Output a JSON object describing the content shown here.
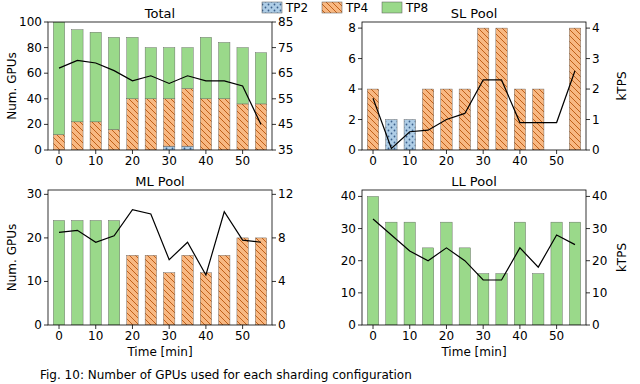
{
  "chart_data": [
    {
      "type": "bar",
      "title": "Total",
      "stacked": true,
      "legend": "top",
      "x": [
        0,
        5,
        10,
        15,
        20,
        25,
        30,
        35,
        40,
        45,
        50,
        55
      ],
      "xlim": [
        -3,
        58
      ],
      "xticks": [
        0,
        10,
        20,
        30,
        40,
        50
      ],
      "ylabel": "Num. GPUs",
      "ylim": [
        0,
        100
      ],
      "yticks": [
        0,
        20,
        40,
        60,
        80,
        100
      ],
      "y2lim": [
        35,
        85
      ],
      "y2ticks": [
        35,
        45,
        55,
        65,
        75,
        85
      ],
      "series": [
        {
          "name": "TP2",
          "color": "#aecde6",
          "values": [
            0,
            0,
            0,
            0,
            0,
            0,
            3,
            3,
            0,
            0,
            0,
            0
          ]
        },
        {
          "name": "TP4",
          "color": "#f8b882",
          "values": [
            12,
            22,
            22,
            16,
            40,
            40,
            37,
            45,
            40,
            40,
            36,
            36
          ]
        },
        {
          "name": "TP8",
          "color": "#9ad98a",
          "values": [
            88,
            72,
            70,
            72,
            48,
            40,
            40,
            32,
            48,
            44,
            44,
            40
          ]
        },
        {
          "type": "line",
          "axis": "y2",
          "color": "#000000",
          "values": [
            67,
            70,
            69,
            66,
            62,
            64,
            61,
            64,
            62,
            62,
            60,
            45
          ]
        }
      ]
    },
    {
      "type": "bar",
      "title": "SL Pool",
      "stacked": true,
      "x": [
        0,
        5,
        10,
        15,
        20,
        25,
        30,
        35,
        40,
        45,
        50,
        55
      ],
      "xlim": [
        -3,
        58
      ],
      "xticks": [
        0,
        10,
        20,
        30,
        40,
        50
      ],
      "ylim": [
        0,
        8.4
      ],
      "yticks": [
        0,
        2,
        4,
        6,
        8
      ],
      "y2label": "kTPS",
      "y2lim": [
        0,
        4.2
      ],
      "y2ticks": [
        0,
        1,
        2,
        3,
        4
      ],
      "series": [
        {
          "color": "#aecde6",
          "values": [
            0,
            2,
            2,
            0,
            0,
            0,
            0,
            0,
            0,
            0,
            0,
            0
          ]
        },
        {
          "color": "#f8b882",
          "values": [
            4,
            0,
            0,
            4,
            4,
            4,
            8,
            8,
            4,
            4,
            0,
            8
          ]
        },
        {
          "color": "#9ad98a",
          "values": [
            0,
            0,
            0,
            0,
            0,
            0,
            0,
            0,
            0,
            0,
            0,
            0
          ]
        },
        {
          "type": "line",
          "axis": "y2",
          "color": "#000000",
          "values": [
            1.7,
            0.05,
            0.6,
            0.65,
            1.0,
            1.2,
            2.3,
            2.3,
            0.9,
            0.9,
            0.9,
            2.6
          ]
        }
      ]
    },
    {
      "type": "bar",
      "title": "ML Pool",
      "stacked": true,
      "x": [
        0,
        5,
        10,
        15,
        20,
        25,
        30,
        35,
        40,
        45,
        50,
        55
      ],
      "xlim": [
        -3,
        58
      ],
      "xticks": [
        0,
        10,
        20,
        30,
        40,
        50
      ],
      "xlabel": "Time [min]",
      "ylabel": "Num. GPUs",
      "ylim": [
        0,
        31
      ],
      "yticks": [
        0,
        10,
        20,
        30
      ],
      "y2lim": [
        0,
        12.4
      ],
      "y2ticks": [
        0,
        4,
        8,
        12
      ],
      "series": [
        {
          "color": "#aecde6",
          "values": [
            0,
            0,
            0,
            0,
            0,
            0,
            0,
            0,
            0,
            0,
            0,
            0
          ]
        },
        {
          "color": "#f8b882",
          "values": [
            0,
            0,
            0,
            0,
            16,
            16,
            12,
            16,
            12,
            16,
            20,
            20
          ]
        },
        {
          "color": "#9ad98a",
          "values": [
            24,
            24,
            24,
            24,
            0,
            0,
            0,
            0,
            0,
            0,
            0,
            0
          ]
        },
        {
          "type": "line",
          "axis": "y2",
          "color": "#000000",
          "values": [
            8.5,
            8.7,
            7.6,
            8.2,
            10.6,
            10.2,
            6.0,
            7.6,
            4.6,
            10.4,
            7.8,
            7.6
          ]
        }
      ]
    },
    {
      "type": "bar",
      "title": "LL Pool",
      "stacked": true,
      "x": [
        0,
        5,
        10,
        15,
        20,
        25,
        30,
        35,
        40,
        45,
        50,
        55
      ],
      "xlim": [
        -3,
        58
      ],
      "xticks": [
        0,
        10,
        20,
        30,
        40,
        50
      ],
      "xlabel": "Time [min]",
      "y2label": "kTPS",
      "ylim": [
        0,
        42
      ],
      "yticks": [
        0,
        10,
        20,
        30,
        40
      ],
      "y2lim": [
        0,
        42
      ],
      "y2ticks": [
        0,
        10,
        20,
        30,
        40
      ],
      "series": [
        {
          "color": "#aecde6",
          "values": [
            0,
            0,
            0,
            0,
            0,
            0,
            0,
            0,
            0,
            0,
            0,
            0
          ]
        },
        {
          "color": "#f8b882",
          "values": [
            0,
            0,
            0,
            0,
            0,
            0,
            0,
            0,
            0,
            0,
            0,
            0
          ]
        },
        {
          "color": "#9ad98a",
          "values": [
            40,
            32,
            32,
            24,
            32,
            24,
            16,
            16,
            32,
            16,
            32,
            32
          ]
        },
        {
          "type": "line",
          "axis": "y2",
          "color": "#000000",
          "values": [
            33,
            28,
            23,
            20,
            24,
            20,
            14,
            14,
            24,
            18,
            28,
            25
          ]
        }
      ]
    }
  ],
  "caption": "Fig. 10: Number of GPUs used for each sharding configuration"
}
